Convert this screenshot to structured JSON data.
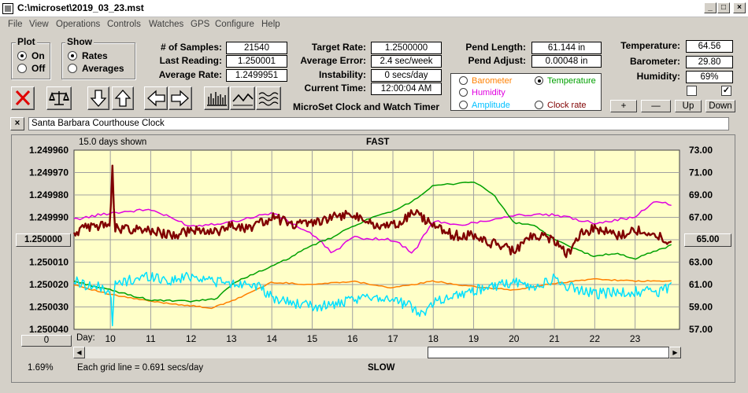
{
  "window": {
    "title": "C:\\microset\\2019_03_23.mst"
  },
  "menu": [
    "File",
    "View",
    "Operations",
    "Controls",
    "Watches",
    "GPS",
    "Configure",
    "Help"
  ],
  "plot_group": {
    "title": "Plot",
    "options": [
      "On",
      "Off"
    ],
    "selected": "On"
  },
  "show_group": {
    "title": "Show",
    "options": [
      "Rates",
      "Averages"
    ],
    "selected": "Rates"
  },
  "stats": {
    "samples_label": "# of Samples:",
    "samples": "21540",
    "last_reading_label": "Last Reading:",
    "last_reading": "1.250001",
    "average_rate_label": "Average Rate:",
    "average_rate": "1.2499951",
    "target_rate_label": "Target Rate:",
    "target_rate": "1.2500000",
    "average_error_label": "Average Error:",
    "average_error": "2.4 sec/week",
    "instability_label": "Instability:",
    "instability": "0 secs/day",
    "current_time_label": "Current Time:",
    "current_time": "12:00:04 AM",
    "product_title": "MicroSet Clock and Watch Timer",
    "pend_length_label": "Pend Length:",
    "pend_length": "61.144 in",
    "pend_adjust_label": "Pend Adjust:",
    "pend_adjust": "0.00048 in"
  },
  "environment": {
    "temperature_label": "Temperature:",
    "temperature": "64.56",
    "barometer_label": "Barometer:",
    "barometer": "29.80",
    "humidity_label": "Humidity:",
    "humidity": "69%",
    "check_1": false,
    "check_2": true,
    "buttons": {
      "plus": "+",
      "minus": "—",
      "up": "Up",
      "down": "Down"
    }
  },
  "overlay_select": {
    "items": [
      {
        "label": "Barometer",
        "color": "#ff8000",
        "selected": false
      },
      {
        "label": "Temperature",
        "color": "#00a000",
        "selected": true
      },
      {
        "label": "Humidity",
        "color": "#e000e0",
        "selected": false
      },
      {
        "label": "Amplitude",
        "color": "#00c0ff",
        "selected": false
      },
      {
        "label": "Clock rate",
        "color": "#800000",
        "selected": false
      }
    ]
  },
  "toolbar": {
    "icons": [
      "clear-icon",
      "balance-scale-icon",
      "arrow-down-icon",
      "arrow-up-icon",
      "arrow-left-icon",
      "arrow-right-icon",
      "bar-graph-icon",
      "line-graph-icon",
      "wave-graph-icon"
    ]
  },
  "clock_name": {
    "close_label": "×",
    "value": "Santa Barbara Courthouse Clock"
  },
  "chart": {
    "days_shown": "15.0 days shown",
    "top_label": "FAST",
    "bottom_label": "SLOW",
    "center_button": "1.250000",
    "right_button": "65.00",
    "zero_button": "0",
    "x_prefix": "Day:",
    "footer_percent": "1.69%",
    "footer_grid": "Each grid line = 0.691 secs/day",
    "colors": {
      "background": "#ffffc8",
      "grid": "#a0a0a0",
      "clock_rate": "#800000",
      "temperature": "#00a000",
      "humidity": "#e000e0",
      "barometer": "#ff8000",
      "amplitude": "#00e0ff"
    }
  },
  "chart_data": {
    "type": "line",
    "x_label": "Day",
    "x_ticks": [
      "10",
      "11",
      "12",
      "13",
      "14",
      "15",
      "16",
      "17",
      "18",
      "19",
      "20",
      "21",
      "22",
      "23"
    ],
    "x_range": [
      9.1,
      24.1
    ],
    "left_axis": {
      "ticks": [
        "1.249960",
        "1.249970",
        "1.249980",
        "1.249990",
        "1.250000",
        "1.250010",
        "1.250020",
        "1.250030",
        "1.250040"
      ],
      "range": [
        1.25004,
        1.24996
      ],
      "direction": "top-to-bottom"
    },
    "right_axis": {
      "ticks": [
        "73.00",
        "71.00",
        "69.00",
        "67.00",
        "65.00",
        "63.00",
        "61.00",
        "59.00",
        "57.00"
      ],
      "range": [
        57,
        73
      ]
    },
    "series": [
      {
        "name": "Clock rate",
        "axis": "left",
        "x": [
          9.1,
          9.6,
          10.0,
          10.05,
          10.1,
          10.5,
          11.0,
          11.5,
          12.0,
          12.5,
          13.0,
          13.5,
          14.0,
          14.5,
          15.0,
          15.5,
          16.0,
          16.5,
          17.0,
          17.5,
          18.0,
          18.5,
          19.0,
          19.5,
          20.0,
          20.5,
          21.0,
          21.3,
          21.6,
          22.0,
          22.5,
          23.0,
          23.5,
          23.9
        ],
        "y": [
          1.249997,
          1.249993,
          1.249995,
          1.249965,
          1.249995,
          1.249995,
          1.249996,
          1.249998,
          1.249996,
          1.249997,
          1.249994,
          1.249995,
          1.24999,
          1.249993,
          1.249992,
          1.24999,
          1.249989,
          1.249993,
          1.249994,
          1.249988,
          1.249993,
          1.249998,
          1.249998,
          1.250002,
          1.250005,
          1.249998,
          1.25,
          1.250007,
          1.249998,
          1.249995,
          1.249998,
          1.249996,
          1.249997,
          1.250001
        ]
      },
      {
        "name": "Temperature",
        "axis": "right",
        "x": [
          9.1,
          10.0,
          11.0,
          12.0,
          12.6,
          13.0,
          13.5,
          14.0,
          14.5,
          15.0,
          15.5,
          16.0,
          16.5,
          17.0,
          17.5,
          18.0,
          18.5,
          19.0,
          19.5,
          20.0,
          20.5,
          21.0,
          21.5,
          22.0,
          22.5,
          23.0,
          23.5,
          23.9
        ],
        "y": [
          61.3,
          60.5,
          59.6,
          59.5,
          59.7,
          61.0,
          61.9,
          62.6,
          63.5,
          64.5,
          65.2,
          66.2,
          67.0,
          67.5,
          68.5,
          69.8,
          70.0,
          70.2,
          69.0,
          66.5,
          66.3,
          65.0,
          64.2,
          63.5,
          63.8,
          63.3,
          64.0,
          64.5
        ]
      },
      {
        "name": "Humidity",
        "axis": "right",
        "x": [
          9.1,
          10.0,
          11.0,
          12.0,
          13.0,
          14.0,
          15.0,
          15.5,
          16.0,
          17.0,
          17.5,
          18.0,
          18.5,
          19.0,
          20.0,
          21.0,
          22.0,
          23.0,
          23.5,
          23.9
        ],
        "y": [
          66.8,
          67.4,
          67.7,
          66.2,
          66.6,
          67.4,
          65.5,
          63.8,
          65.2,
          65.0,
          63.8,
          66.7,
          66.3,
          66.5,
          67.2,
          67.2,
          66.5,
          67.0,
          68.5,
          68.1
        ]
      },
      {
        "name": "Barometer",
        "axis": "right",
        "x": [
          9.1,
          10.0,
          11.0,
          12.0,
          12.5,
          13.0,
          14.0,
          15.0,
          16.0,
          17.0,
          18.0,
          19.0,
          20.0,
          21.0,
          22.0,
          23.0,
          23.9
        ],
        "y": [
          61.0,
          60.1,
          59.5,
          59.1,
          58.9,
          59.5,
          61.2,
          61.0,
          61.3,
          60.7,
          61.3,
          60.8,
          60.5,
          61.1,
          61.5,
          61.3,
          61.3
        ]
      },
      {
        "name": "Amplitude",
        "axis": "right",
        "x": [
          9.1,
          9.6,
          10.0,
          10.05,
          10.1,
          10.5,
          11.0,
          11.5,
          12.0,
          12.5,
          13.0,
          13.5,
          14.0,
          14.5,
          15.0,
          15.5,
          16.0,
          16.5,
          17.0,
          17.5,
          17.8,
          18.0,
          18.5,
          19.0,
          19.5,
          20.0,
          20.5,
          21.0,
          21.5,
          22.0,
          22.5,
          23.0,
          23.5,
          23.9
        ],
        "y": [
          61.3,
          60.8,
          60.5,
          57.1,
          61.0,
          61.4,
          61.8,
          61.3,
          61.8,
          61.4,
          61.0,
          61.2,
          59.8,
          59.4,
          59.0,
          59.2,
          59.5,
          60.0,
          59.7,
          58.9,
          58.4,
          59.5,
          60.0,
          60.5,
          60.8,
          61.2,
          60.7,
          61.5,
          60.6,
          60.2,
          60.3,
          60.4,
          60.3,
          60.8
        ]
      }
    ]
  }
}
